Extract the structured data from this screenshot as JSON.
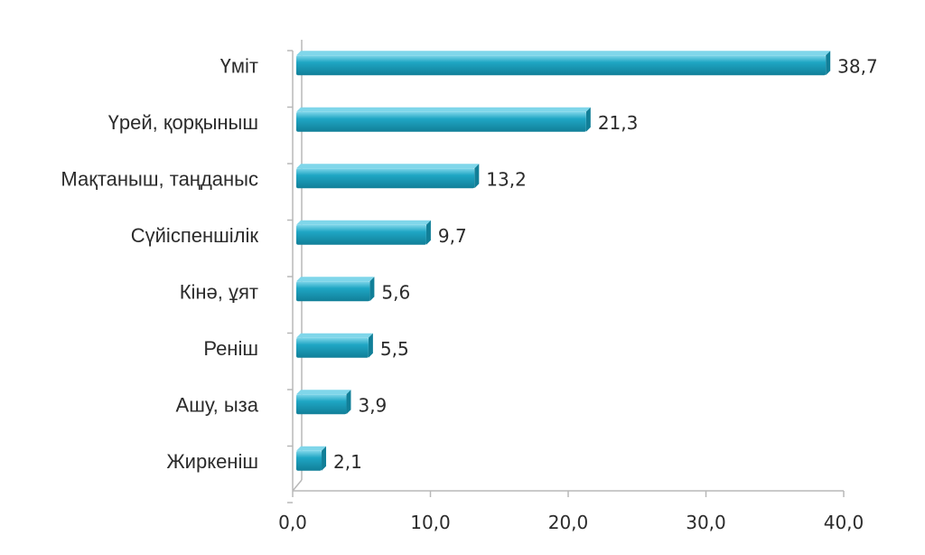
{
  "chart_data": {
    "type": "bar",
    "orientation": "horizontal",
    "categories": [
      "Үміт",
      "Үрей, қорқыныш",
      "Мақтаныш, таңданыс",
      "Сүйіспеншілік",
      "Кінә, ұят",
      "Реніш",
      "Ашу, ыза",
      "Жиркеніш"
    ],
    "values": [
      38.7,
      21.3,
      13.2,
      9.7,
      5.6,
      5.5,
      3.9,
      2.1
    ],
    "value_labels": [
      "38,7",
      "21,3",
      "13,2",
      "9,7",
      "5,6",
      "5,5",
      "3,9",
      "2,1"
    ],
    "xlim": [
      0,
      40
    ],
    "xticks": [
      0,
      10,
      20,
      30,
      40
    ],
    "xtick_labels": [
      "0,0",
      "10,0",
      "20,0",
      "30,0",
      "40,0"
    ],
    "title": "",
    "xlabel": "",
    "ylabel": "",
    "grid": false,
    "style": "3d-bars",
    "colors": {
      "bar": "#1fa6c4",
      "bar_dark": "#117f98",
      "bar_light": "#7fd6ea",
      "axis": "#b8b8b8"
    }
  }
}
